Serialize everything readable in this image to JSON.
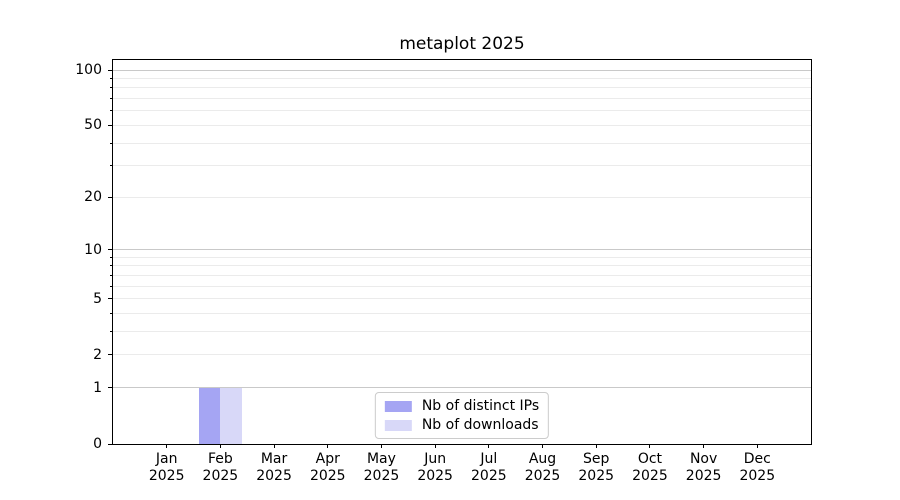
{
  "chart_data": {
    "type": "bar",
    "title": "metaplot 2025",
    "categories": [
      "Jan",
      "Feb",
      "Mar",
      "Apr",
      "May",
      "Jun",
      "Jul",
      "Aug",
      "Sep",
      "Oct",
      "Nov",
      "Dec"
    ],
    "xtick_year": "2025",
    "series": [
      {
        "name": "Nb of distinct IPs",
        "color": "#a5a5f3",
        "values": [
          0,
          1,
          0,
          0,
          0,
          0,
          0,
          0,
          0,
          0,
          0,
          0
        ]
      },
      {
        "name": "Nb of downloads",
        "color": "#d8d8f8",
        "values": [
          0,
          1,
          0,
          0,
          0,
          0,
          0,
          0,
          0,
          0,
          0,
          0
        ]
      }
    ],
    "yticks": [
      0,
      1,
      2,
      5,
      10,
      20,
      50,
      100
    ],
    "major_grid_values": [
      1,
      10,
      100
    ],
    "minor_grid_values": [
      2,
      3,
      4,
      5,
      6,
      7,
      8,
      9,
      20,
      30,
      40,
      50,
      60,
      70,
      80,
      90
    ],
    "minor_tick_values": [
      3,
      4,
      6,
      7,
      8,
      9,
      30,
      40,
      60,
      70,
      80,
      90
    ],
    "scale": "log10(1+y)",
    "ylim": [
      0,
      113
    ],
    "xlabel": "",
    "ylabel": "",
    "grid": true,
    "legend_position": "lower center",
    "colors": {
      "major_grid": "#c9c9c9",
      "minor_grid": "#ebebeb",
      "spine": "#000000",
      "text": "#000000"
    }
  }
}
